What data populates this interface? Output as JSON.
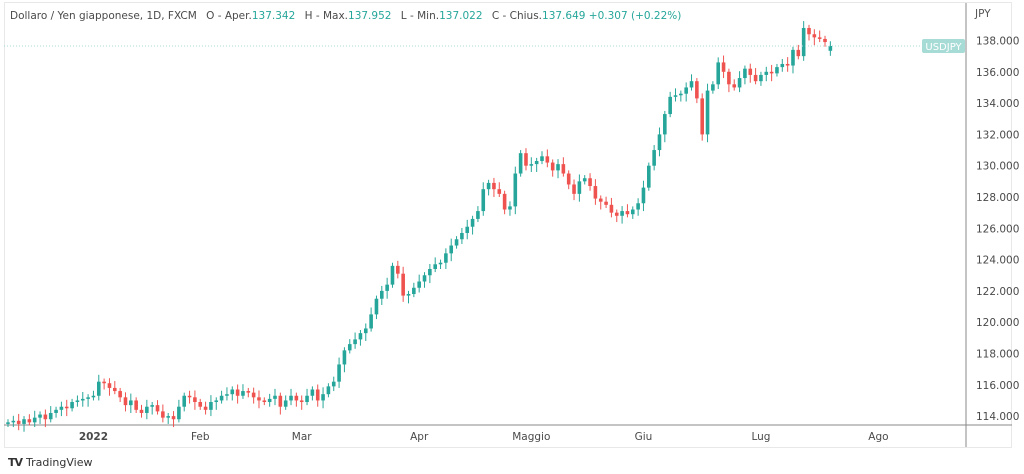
{
  "legend": {
    "symbol": "Dollaro / Yen giapponese, 1D, FXCM",
    "open_label": "O - Aper.",
    "open": "137.342",
    "high_label": "H - Max.",
    "high": "137.952",
    "low_label": "L - Min.",
    "low": "137.022",
    "close_label": "C - Chius.",
    "close": "137.649",
    "change": "+0.307 (+0.22%)"
  },
  "footer": {
    "brand": "TradingView"
  },
  "colors": {
    "up": "#26a69a",
    "down": "#ef5350",
    "price_label": "#a7dbd6"
  },
  "chart_data": {
    "type": "candlestick",
    "currency_label": "JPY",
    "symbol_label": "USDJPY",
    "last_price": 137.649,
    "last_candle": {
      "open": 137.342,
      "high": 137.952,
      "low": 137.022,
      "close": 137.649
    },
    "ylim": [
      113.3,
      139.8
    ],
    "y_ticks": [
      "114.000",
      "116.000",
      "118.000",
      "120.000",
      "122.000",
      "124.000",
      "126.000",
      "128.000",
      "130.000",
      "132.000",
      "134.000",
      "136.000",
      "138.000"
    ],
    "x_ticks": [
      {
        "label": "2022",
        "index": 16
      },
      {
        "label": "Feb",
        "index": 36
      },
      {
        "label": "Mar",
        "index": 55
      },
      {
        "label": "Apr",
        "index": 77
      },
      {
        "label": "Maggio",
        "index": 98
      },
      {
        "label": "Giu",
        "index": 119
      },
      {
        "label": "Lug",
        "index": 141
      },
      {
        "label": "Ago",
        "index": 163
      }
    ],
    "closes": [
      113.6,
      113.7,
      113.5,
      113.8,
      113.6,
      113.9,
      114.1,
      113.8,
      114.2,
      114.4,
      114.6,
      114.5,
      114.9,
      115.0,
      115.1,
      115.2,
      115.3,
      116.2,
      116.1,
      115.8,
      115.6,
      115.2,
      114.7,
      115.0,
      114.4,
      114.2,
      114.6,
      114.7,
      114.3,
      113.9,
      114.0,
      113.8,
      114.6,
      115.3,
      115.2,
      114.9,
      114.6,
      114.4,
      114.9,
      115.0,
      115.3,
      115.4,
      115.7,
      115.3,
      115.6,
      115.5,
      115.2,
      115.0,
      114.9,
      115.1,
      115.3,
      114.6,
      115.0,
      115.3,
      115.0,
      114.9,
      115.3,
      115.7,
      115.0,
      115.4,
      115.9,
      116.2,
      117.3,
      118.2,
      118.6,
      118.9,
      119.3,
      119.6,
      120.5,
      121.5,
      122.0,
      122.4,
      123.6,
      123.1,
      121.7,
      121.8,
      122.2,
      122.6,
      123.0,
      123.4,
      123.7,
      123.8,
      124.4,
      124.9,
      125.3,
      125.7,
      126.1,
      126.6,
      127.1,
      128.5,
      128.9,
      128.5,
      128.2,
      127.2,
      127.4,
      129.5,
      130.8,
      130.0,
      130.1,
      130.3,
      130.6,
      130.2,
      129.7,
      130.1,
      129.5,
      128.8,
      128.2,
      129.0,
      129.2,
      128.7,
      127.9,
      127.7,
      127.5,
      127.0,
      126.8,
      127.1,
      126.9,
      127.2,
      127.6,
      128.6,
      130.0,
      131.0,
      132.0,
      133.3,
      134.4,
      134.5,
      134.6,
      135.0,
      135.4,
      134.3,
      132.0,
      134.8,
      135.2,
      136.6,
      136.0,
      135.2,
      135.0,
      135.6,
      136.2,
      135.8,
      135.4,
      135.8,
      136.0,
      135.9,
      136.3,
      136.5,
      136.4,
      137.4,
      137.0,
      138.8,
      138.4,
      138.2,
      138.1,
      137.9,
      137.342
    ]
  }
}
